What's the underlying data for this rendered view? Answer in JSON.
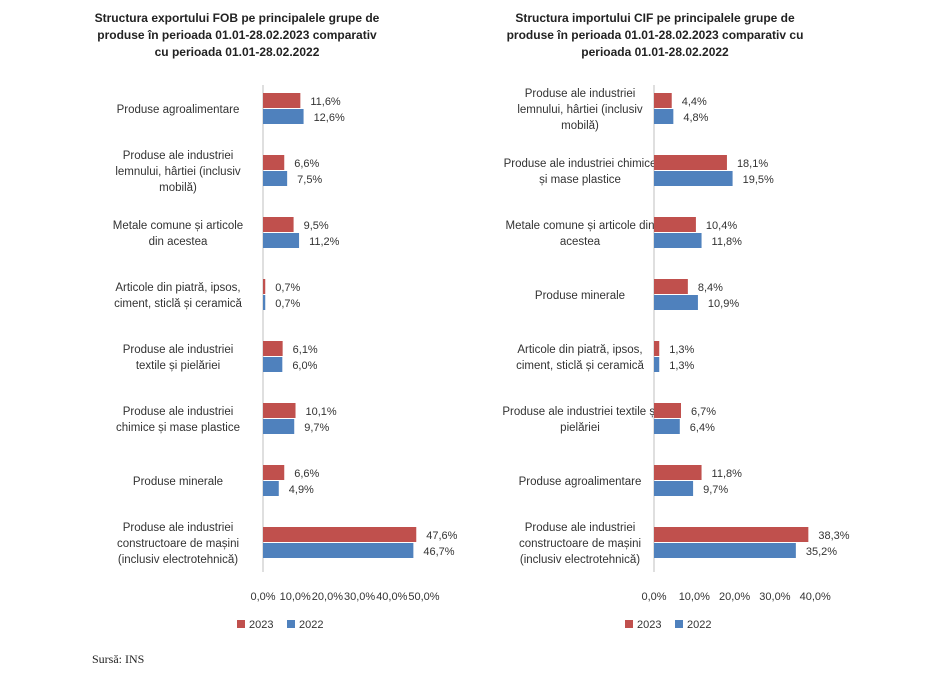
{
  "chart_data": [
    {
      "type": "bar",
      "orientation": "horizontal",
      "title": [
        "Structura exportului FOB pe principalele grupe de",
        "produse în perioada 01.01-28.02.2023 comparativ",
        "cu perioada 01.01-28.02.2022"
      ],
      "categories": [
        [
          "Produse agroalimentare"
        ],
        [
          "Produse ale industriei",
          "lemnului, hârtiei (inclusiv",
          "mobilă)"
        ],
        [
          "Metale comune și articole",
          "din acestea"
        ],
        [
          "Articole din piatră, ipsos,",
          "ciment, sticlă și ceramică"
        ],
        [
          "Produse ale industriei",
          "textile și pielăriei"
        ],
        [
          "Produse ale industriei",
          "chimice și mase plastice"
        ],
        [
          "Produse minerale"
        ],
        [
          "Produse ale industriei",
          "constructoare de mașini",
          "(inclusiv electrotehnică)"
        ]
      ],
      "series": [
        {
          "name": "2023",
          "color": "#c0504d",
          "values": [
            11.6,
            6.6,
            9.5,
            0.7,
            6.1,
            10.1,
            6.6,
            47.6
          ],
          "labels": [
            "11,6%",
            "6,6%",
            "9,5%",
            "0,7%",
            "6,1%",
            "10,1%",
            "6,6%",
            "47,6%"
          ]
        },
        {
          "name": "2022",
          "color": "#4f81bd",
          "values": [
            12.6,
            7.5,
            11.2,
            0.7,
            6.0,
            9.7,
            4.9,
            46.7
          ],
          "labels": [
            "12,6%",
            "7,5%",
            "11,2%",
            "0,7%",
            "6,0%",
            "9,7%",
            "4,9%",
            "46,7%"
          ]
        }
      ],
      "xlim": [
        0,
        50
      ],
      "ticks": [
        0,
        10,
        20,
        30,
        40,
        50
      ],
      "tick_labels": [
        "0,0%",
        "10,0%",
        "20,0%",
        "30,0%",
        "40,0%",
        "50,0%"
      ],
      "legend": [
        "2023",
        "2022"
      ]
    },
    {
      "type": "bar",
      "orientation": "horizontal",
      "title": [
        "Structura importului CIF pe principalele grupe de",
        "produse în perioada 01.01-28.02.2023 comparativ cu",
        "perioada 01.01-28.02.2022"
      ],
      "categories": [
        [
          "Produse ale industriei",
          "lemnului, hârtiei (inclusiv",
          "mobilă)"
        ],
        [
          "Produse ale industriei chimice",
          "și mase plastice"
        ],
        [
          "Metale comune și articole din",
          "acestea"
        ],
        [
          "Produse minerale"
        ],
        [
          "Articole din piatră, ipsos,",
          "ciment, sticlă și ceramică"
        ],
        [
          "Produse ale industriei textile și",
          "pielăriei"
        ],
        [
          "Produse agroalimentare"
        ],
        [
          "Produse ale industriei",
          "constructoare de mașini",
          "(inclusiv electrotehnică)"
        ]
      ],
      "series": [
        {
          "name": "2023",
          "color": "#c0504d",
          "values": [
            4.4,
            18.1,
            10.4,
            8.4,
            1.3,
            6.7,
            11.8,
            38.3
          ],
          "labels": [
            "4,4%",
            "18,1%",
            "10,4%",
            "8,4%",
            "1,3%",
            "6,7%",
            "11,8%",
            "38,3%"
          ]
        },
        {
          "name": "2022",
          "color": "#4f81bd",
          "values": [
            4.8,
            19.5,
            11.8,
            10.9,
            1.3,
            6.4,
            9.7,
            35.2
          ],
          "labels": [
            "4,8%",
            "19,5%",
            "11,8%",
            "10,9%",
            "1,3%",
            "6,4%",
            "9,7%",
            "35,2%"
          ]
        }
      ],
      "xlim": [
        0,
        40
      ],
      "ticks": [
        0,
        10,
        20,
        30,
        40
      ],
      "tick_labels": [
        "0,0%",
        "10,0%",
        "20,0%",
        "30,0%",
        "40,0%"
      ],
      "legend": [
        "2023",
        "2022"
      ]
    }
  ],
  "source": "Sursă: INS"
}
